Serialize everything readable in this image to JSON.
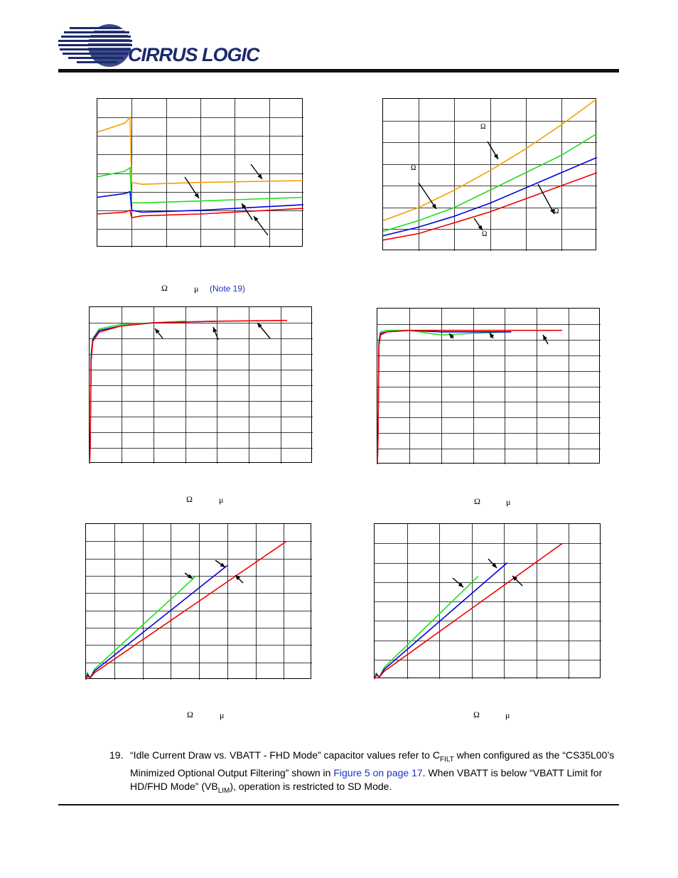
{
  "header": {
    "logo_text": "CIRRUS LOGIC",
    "logo_mark": "®",
    "brand_color": "#1c2a6e"
  },
  "symbols": {
    "omega": "Ω",
    "mu": "μ"
  },
  "captions": {
    "chart2_note_link": "(Note 19)"
  },
  "footnote": {
    "number": "19.",
    "text_part1": "“Idle Current Draw vs. VBATT - FHD Mode” capacitor values refer to C",
    "sub1": "FILT",
    "text_part2": " when configured as the “CS35L00’s Minimized Optional Output Filtering” shown in ",
    "link": "Figure 5 on page 17",
    "text_part3": ". When VBATT is below “VBATT Limit for HD/FHD Mode” (VB",
    "sub2": "LIM",
    "text_part4": "), operation is restricted to SD Mode."
  },
  "colors": {
    "orange": "#f5a000",
    "green": "#22dd22",
    "blue": "#0000dd",
    "red": "#ee0000"
  },
  "chart_data": [
    {
      "type": "line",
      "grid": {
        "cols": 6,
        "rows": 8
      },
      "xlim": [
        0,
        6
      ],
      "ylim": [
        0,
        8
      ],
      "series": [
        {
          "color": "orange",
          "points": [
            [
              0,
              6.2
            ],
            [
              0.8,
              6.7
            ],
            [
              0.95,
              7.0
            ],
            [
              1.0,
              3.5
            ],
            [
              1.3,
              3.4
            ],
            [
              3,
              3.5
            ],
            [
              6,
              3.6
            ]
          ]
        },
        {
          "color": "green",
          "points": [
            [
              0,
              3.8
            ],
            [
              0.8,
              4.1
            ],
            [
              0.95,
              4.3
            ],
            [
              1.0,
              2.4
            ],
            [
              1.3,
              2.4
            ],
            [
              3,
              2.5
            ],
            [
              6,
              2.7
            ]
          ]
        },
        {
          "color": "blue",
          "points": [
            [
              0,
              2.7
            ],
            [
              0.8,
              2.9
            ],
            [
              0.95,
              3.0
            ],
            [
              1.0,
              2.0
            ],
            [
              1.3,
              1.9
            ],
            [
              3,
              2.0
            ],
            [
              6,
              2.3
            ]
          ]
        },
        {
          "color": "red",
          "points": [
            [
              0,
              1.8
            ],
            [
              0.8,
              1.9
            ],
            [
              0.95,
              2.0
            ],
            [
              1.0,
              1.6
            ],
            [
              1.3,
              1.7
            ],
            [
              3,
              1.8
            ],
            [
              6,
              2.1
            ]
          ]
        }
      ]
    },
    {
      "type": "line",
      "grid": {
        "cols": 6,
        "rows": 7
      },
      "xlim": [
        0,
        6
      ],
      "ylim": [
        0,
        7
      ],
      "series": [
        {
          "color": "orange",
          "points": [
            [
              0,
              1.4
            ],
            [
              1,
              2.0
            ],
            [
              2,
              2.8
            ],
            [
              3,
              3.7
            ],
            [
              4,
              4.7
            ],
            [
              5,
              5.8
            ],
            [
              6,
              7.0
            ]
          ]
        },
        {
          "color": "green",
          "points": [
            [
              0,
              0.9
            ],
            [
              1,
              1.4
            ],
            [
              2,
              2.0
            ],
            [
              3,
              2.8
            ],
            [
              4,
              3.6
            ],
            [
              5,
              4.4
            ],
            [
              6,
              5.4
            ]
          ]
        },
        {
          "color": "blue",
          "points": [
            [
              0,
              0.7
            ],
            [
              1,
              1.1
            ],
            [
              2,
              1.6
            ],
            [
              3,
              2.2
            ],
            [
              4,
              2.9
            ],
            [
              5,
              3.6
            ],
            [
              6,
              4.3
            ]
          ]
        },
        {
          "color": "red",
          "points": [
            [
              0,
              0.5
            ],
            [
              1,
              0.8
            ],
            [
              2,
              1.3
            ],
            [
              3,
              1.8
            ],
            [
              4,
              2.4
            ],
            [
              5,
              3.0
            ],
            [
              6,
              3.6
            ]
          ]
        }
      ]
    },
    {
      "type": "line",
      "grid": {
        "cols": 7,
        "rows": 10
      },
      "xlim": [
        0,
        7
      ],
      "ylim": [
        0,
        10
      ],
      "series": [
        {
          "color": "green",
          "points": [
            [
              0,
              0
            ],
            [
              0.02,
              1.2
            ],
            [
              0.05,
              7.0
            ],
            [
              0.1,
              8.0
            ],
            [
              0.3,
              8.6
            ],
            [
              1,
              8.9
            ],
            [
              2,
              9.0
            ],
            [
              3,
              9.1
            ]
          ]
        },
        {
          "color": "blue",
          "points": [
            [
              0,
              0
            ],
            [
              0.02,
              1.1
            ],
            [
              0.05,
              6.8
            ],
            [
              0.1,
              7.9
            ],
            [
              0.3,
              8.5
            ],
            [
              1,
              8.8
            ],
            [
              2,
              9.0
            ],
            [
              4,
              9.1
            ]
          ]
        },
        {
          "color": "red",
          "points": [
            [
              0,
              0
            ],
            [
              0.02,
              1.0
            ],
            [
              0.05,
              6.5
            ],
            [
              0.1,
              7.8
            ],
            [
              0.3,
              8.4
            ],
            [
              1,
              8.8
            ],
            [
              2,
              9.0
            ],
            [
              4,
              9.1
            ],
            [
              6.2,
              9.15
            ]
          ]
        }
      ]
    },
    {
      "type": "line",
      "grid": {
        "cols": 7,
        "rows": 10
      },
      "xlim": [
        0,
        7
      ],
      "ylim": [
        0,
        10
      ],
      "series": [
        {
          "color": "green",
          "points": [
            [
              0,
              0
            ],
            [
              0.02,
              2.0
            ],
            [
              0.05,
              8.0
            ],
            [
              0.1,
              8.5
            ],
            [
              0.3,
              8.6
            ],
            [
              1,
              8.6
            ],
            [
              2,
              8.3
            ],
            [
              3,
              8.4
            ],
            [
              4,
              8.5
            ]
          ]
        },
        {
          "color": "blue",
          "points": [
            [
              0,
              0
            ],
            [
              0.02,
              1.8
            ],
            [
              0.05,
              7.8
            ],
            [
              0.1,
              8.4
            ],
            [
              0.3,
              8.5
            ],
            [
              1,
              8.6
            ],
            [
              2,
              8.5
            ],
            [
              3,
              8.5
            ],
            [
              4.2,
              8.5
            ]
          ]
        },
        {
          "color": "red",
          "points": [
            [
              0,
              0
            ],
            [
              0.02,
              1.6
            ],
            [
              0.05,
              7.6
            ],
            [
              0.1,
              8.3
            ],
            [
              0.3,
              8.5
            ],
            [
              1,
              8.6
            ],
            [
              3,
              8.6
            ],
            [
              5,
              8.6
            ],
            [
              5.8,
              8.6
            ]
          ]
        }
      ]
    },
    {
      "type": "line",
      "grid": {
        "cols": 8,
        "rows": 9
      },
      "xlim": [
        0,
        8
      ],
      "ylim": [
        0,
        9
      ],
      "series": [
        {
          "color": "green",
          "points": [
            [
              0,
              0
            ],
            [
              0.05,
              0.4
            ],
            [
              0.15,
              0.1
            ],
            [
              0.3,
              0.6
            ],
            [
              3.9,
              6.0
            ]
          ]
        },
        {
          "color": "blue",
          "points": [
            [
              0,
              0
            ],
            [
              0.05,
              0.3
            ],
            [
              0.15,
              0.1
            ],
            [
              0.3,
              0.5
            ],
            [
              5.0,
              6.6
            ]
          ]
        },
        {
          "color": "red",
          "points": [
            [
              0,
              0
            ],
            [
              0.05,
              0.2
            ],
            [
              0.15,
              0.1
            ],
            [
              0.3,
              0.4
            ],
            [
              7.1,
              8.0
            ]
          ]
        }
      ]
    },
    {
      "type": "line",
      "grid": {
        "cols": 7,
        "rows": 8
      },
      "xlim": [
        0,
        7
      ],
      "ylim": [
        0,
        8
      ],
      "series": [
        {
          "color": "green",
          "points": [
            [
              0,
              0
            ],
            [
              0.05,
              0.3
            ],
            [
              0.15,
              0.1
            ],
            [
              0.3,
              0.6
            ],
            [
              3.2,
              5.3
            ]
          ]
        },
        {
          "color": "blue",
          "points": [
            [
              0,
              0
            ],
            [
              0.05,
              0.25
            ],
            [
              0.15,
              0.1
            ],
            [
              0.3,
              0.5
            ],
            [
              4.1,
              6.0
            ]
          ]
        },
        {
          "color": "red",
          "points": [
            [
              0,
              0
            ],
            [
              0.05,
              0.2
            ],
            [
              0.15,
              0.1
            ],
            [
              0.3,
              0.4
            ],
            [
              5.8,
              7.0
            ]
          ]
        }
      ]
    }
  ]
}
